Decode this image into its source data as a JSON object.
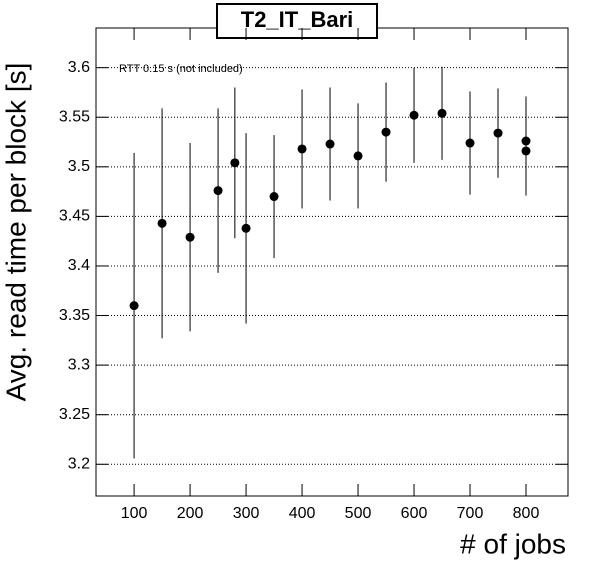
{
  "chart_data": {
    "type": "scatter",
    "title": "T2_IT_Bari",
    "annotation": "RTT 0.15 s (not included)",
    "x_label": "# of jobs",
    "y_label": "Avg. read time per block [s]",
    "x": [
      100,
      150,
      200,
      250,
      280,
      300,
      350,
      400,
      450,
      500,
      550,
      600,
      650,
      700,
      750,
      800,
      800
    ],
    "values": [
      3.36,
      3.443,
      3.429,
      3.476,
      3.504,
      3.438,
      3.47,
      3.518,
      3.523,
      3.511,
      3.535,
      3.552,
      3.554,
      3.524,
      3.534,
      3.526,
      3.516
    ],
    "errors": [
      0.154,
      0.116,
      0.095,
      0.083,
      0.076,
      0.096,
      0.062,
      0.06,
      0.057,
      0.053,
      0.05,
      0.048,
      0.047,
      0.052,
      0.045,
      0.045,
      0.045
    ],
    "color": "#000000",
    "xlim": [
      32,
      875
    ],
    "xticks": [
      100,
      200,
      300,
      400,
      500,
      600,
      700,
      800
    ],
    "ylim": [
      3.168,
      3.64
    ],
    "yticks": [
      3.2,
      3.25,
      3.3,
      3.35,
      3.4,
      3.45,
      3.5,
      3.55,
      3.6
    ],
    "grid": true
  }
}
